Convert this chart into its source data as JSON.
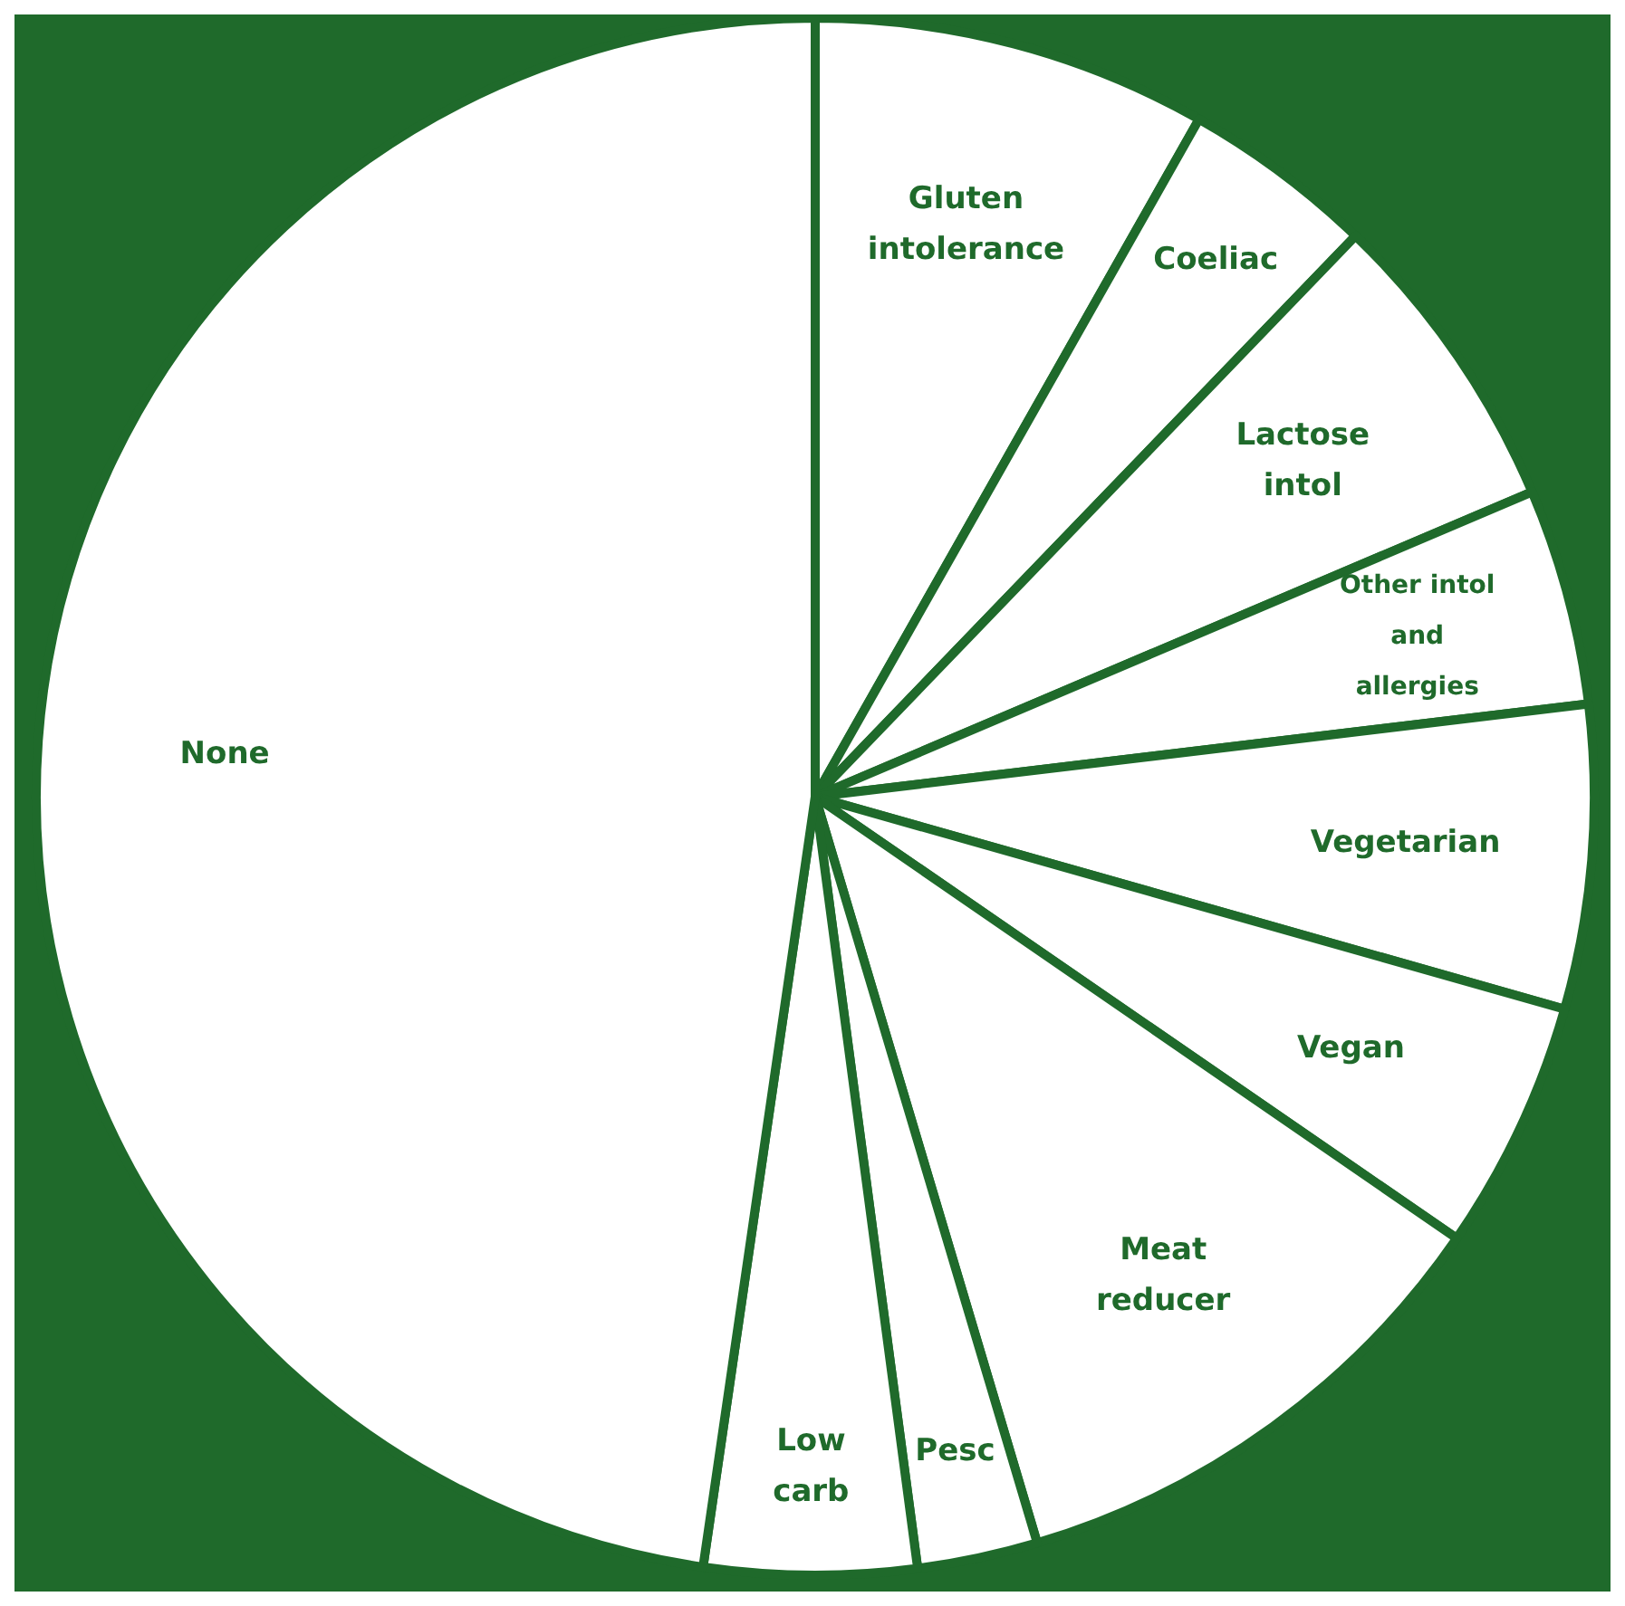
{
  "chart_data": {
    "type": "pie",
    "categories": [
      "Gluten intolerance",
      "Coeliac",
      "Lactose intol",
      "Other intol and allergies",
      "Vegetarian",
      "Vegan",
      "Meat reducer",
      "Pesc",
      "Low carb",
      "None"
    ],
    "values": [
      8.2,
      4.0,
      6.4,
      4.5,
      6.3,
      5.2,
      10.8,
      2.5,
      4.4,
      47.7
    ],
    "colors": [
      "#ffffff",
      "#ffffff",
      "#ffffff",
      "#ffffff",
      "#ffffff",
      "#ffffff",
      "#ffffff",
      "#ffffff",
      "#ffffff",
      "#ffffff"
    ]
  }
}
